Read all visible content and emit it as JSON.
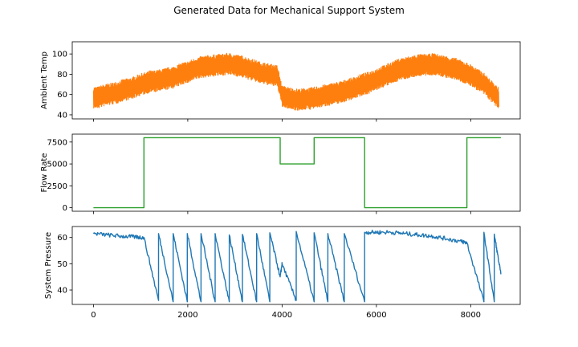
{
  "figure": {
    "title": "Generated Data for Mechanical Support System"
  },
  "chart_data": [
    {
      "type": "line",
      "title": "",
      "xlabel": "",
      "ylabel": "Ambient Temp",
      "xlim": [
        -450,
        9050
      ],
      "ylim": [
        36,
        112
      ],
      "xticks": [
        0,
        2000,
        4000,
        6000,
        8000
      ],
      "yticks": [
        40,
        60,
        80,
        100
      ],
      "show_x_tick_labels": false,
      "grid": false,
      "series": [
        {
          "color": "#ff7f0e",
          "style": "noisy-band",
          "x": [
            0,
            100,
            200,
            300,
            400,
            500,
            600,
            700,
            800,
            900,
            1000,
            1100,
            1200,
            1300,
            1400,
            1500,
            1600,
            1700,
            1800,
            1900,
            2000,
            2100,
            2200,
            2300,
            2400,
            2500,
            2600,
            2700,
            2800,
            2900,
            3000,
            3100,
            3200,
            3300,
            3400,
            3500,
            3600,
            3700,
            3800,
            3900,
            4000,
            4100,
            4200,
            4300,
            4400,
            4500,
            4600,
            4700,
            4800,
            4900,
            5000,
            5100,
            5200,
            5300,
            5400,
            5500,
            5600,
            5700,
            5800,
            5900,
            6000,
            6100,
            6200,
            6300,
            6400,
            6500,
            6600,
            6700,
            6800,
            6900,
            7000,
            7100,
            7200,
            7300,
            7400,
            7500,
            7600,
            7700,
            7800,
            7900,
            8000,
            8100,
            8200,
            8300,
            8400,
            8500,
            8600
          ],
          "center": [
            57,
            57,
            59,
            60,
            61,
            62,
            64,
            65,
            66,
            68,
            70,
            71,
            73,
            73,
            74,
            75,
            76,
            77,
            79,
            81,
            82,
            84,
            86,
            87,
            88,
            88,
            89,
            89,
            90,
            90,
            89,
            88,
            87,
            85,
            84,
            82,
            81,
            80,
            79,
            78,
            58,
            57,
            56,
            55,
            55,
            56,
            56,
            57,
            58,
            59,
            60,
            61,
            62,
            63,
            65,
            66,
            68,
            70,
            71,
            73,
            75,
            77,
            79,
            81,
            83,
            85,
            86,
            87,
            88,
            89,
            89,
            89,
            90,
            89,
            88,
            87,
            86,
            85,
            83,
            81,
            79,
            76,
            73,
            70,
            65,
            60,
            56
          ],
          "half_range": 11
        }
      ]
    },
    {
      "type": "line",
      "title": "",
      "xlabel": "",
      "ylabel": "Flow Rate",
      "xlim": [
        -450,
        9050
      ],
      "ylim": [
        -400,
        8400
      ],
      "xticks": [
        0,
        2000,
        4000,
        6000,
        8000
      ],
      "yticks": [
        0,
        2500,
        5000,
        7500
      ],
      "show_x_tick_labels": false,
      "grid": false,
      "series": [
        {
          "color": "#2ca02c",
          "style": "line",
          "x": [
            0,
            1070,
            1070,
            3960,
            3960,
            4680,
            4680,
            5750,
            5750,
            7920,
            7920,
            8640
          ],
          "y": [
            0,
            0,
            8000,
            8000,
            5000,
            5000,
            8000,
            8000,
            0,
            0,
            8000,
            8000
          ]
        }
      ]
    },
    {
      "type": "line",
      "title": "",
      "xlabel": "",
      "ylabel": "System Pressure",
      "xlim": [
        -450,
        9050
      ],
      "ylim": [
        34.5,
        64.2
      ],
      "xticks": [
        0,
        2000,
        4000,
        6000,
        8000
      ],
      "yticks": [
        40,
        50,
        60
      ],
      "xtick_labels": [
        "0",
        "2000",
        "4000",
        "6000",
        "8000"
      ],
      "show_x_tick_labels": true,
      "grid": false,
      "series": [
        {
          "color": "#1f77b4",
          "style": "line",
          "x": [
            0,
            300,
            600,
            900,
            1070,
            1380,
            1380,
            1690,
            1690,
            1990,
            1990,
            2280,
            2280,
            2580,
            2580,
            2880,
            2880,
            3160,
            3160,
            3460,
            3460,
            3740,
            3740,
            3960,
            4000,
            4300,
            4300,
            4680,
            4680,
            4970,
            4970,
            5320,
            5320,
            5750,
            5750,
            6000,
            6300,
            6600,
            6900,
            7200,
            7500,
            7800,
            7920,
            8280,
            8280,
            8500,
            8500,
            8640
          ],
          "y": [
            61.5,
            61,
            60.5,
            60.2,
            60,
            36,
            61.5,
            35.5,
            61.5,
            35.5,
            61.5,
            35.5,
            61.5,
            35.5,
            61.5,
            35.5,
            61,
            35.5,
            61.2,
            35.5,
            61.5,
            35.5,
            61.8,
            45,
            50,
            36,
            62.3,
            35.5,
            61.8,
            35.5,
            61.5,
            35.5,
            61.5,
            35.5,
            62,
            62,
            62,
            61.5,
            61,
            60.5,
            59.5,
            58.5,
            58,
            35.5,
            62,
            35.5,
            61.3,
            46
          ],
          "noise": 0.8
        }
      ]
    }
  ]
}
